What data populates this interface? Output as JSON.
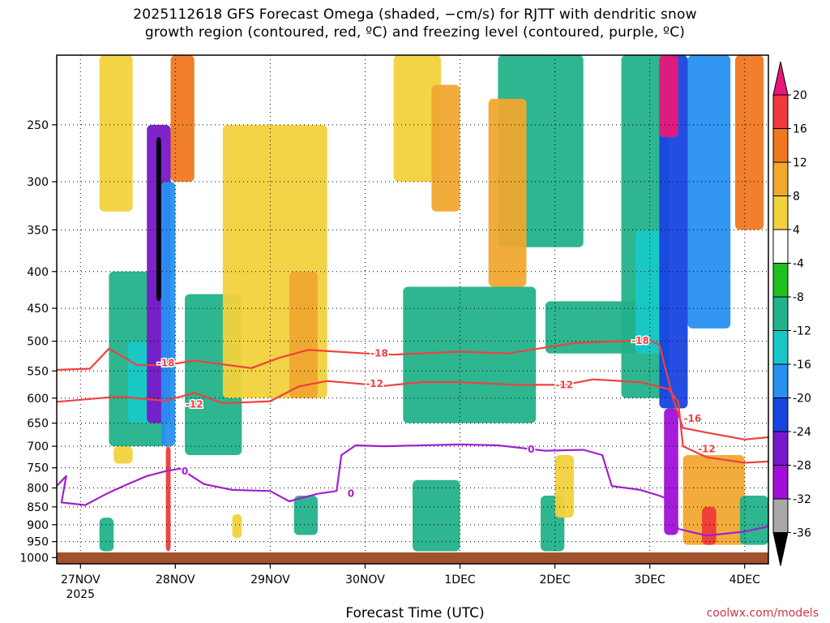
{
  "title_line1": "2025112618 GFS Forecast Omega (shaded, −cm/s) for RJTT with dendritic snow",
  "title_line2": "growth region (contoured, red, ºC) and freezing level (contoured, purple, ºC)",
  "watermark": "coolwx.com/models",
  "chart_data": {
    "type": "heatmap",
    "title": "2025112618 GFS Forecast Omega (shaded, −cm/s) for RJTT with dendritic snow growth region (contoured, red, ºC) and freezing level (contoured, purple, ºC)",
    "xlabel": "Forecast Time (UTC)",
    "ylabel": "",
    "x_ticks": [
      "27NOV",
      "28NOV",
      "29NOV",
      "30NOV",
      "1DEC",
      "2DEC",
      "3DEC",
      "4DEC"
    ],
    "x_sub_label": "2025",
    "x_range_days": [
      -0.25,
      7.25
    ],
    "y_ticks": [
      250,
      300,
      350,
      400,
      450,
      500,
      550,
      600,
      650,
      700,
      750,
      800,
      850,
      900,
      950,
      1000
    ],
    "y_scale": "log",
    "y_range_hpa": [
      200,
      1020
    ],
    "grid": true,
    "colorbar": {
      "labels": [
        "20",
        "16",
        "12",
        "8",
        "4",
        "-4",
        "-8",
        "-12",
        "-16",
        "-20",
        "-24",
        "-28",
        "-32",
        "-36"
      ],
      "colors": [
        "#e8197a",
        "#ee3a3a",
        "#f07820",
        "#f0a830",
        "#f2d23c",
        "#ffffff",
        "#20c020",
        "#22b28a",
        "#18c8c8",
        "#2890f0",
        "#1844e0",
        "#7818c8",
        "#a010d8",
        "#a8a8a8",
        "#000000"
      ]
    },
    "contours": [
      {
        "name": "-18",
        "color": "#f04040",
        "points": [
          [
            -0.25,
            548
          ],
          [
            0.1,
            546
          ],
          [
            0.3,
            512
          ],
          [
            0.6,
            540
          ],
          [
            0.9,
            540
          ],
          [
            1.2,
            532
          ],
          [
            1.8,
            545
          ],
          [
            2.1,
            527
          ],
          [
            2.4,
            514
          ],
          [
            3.0,
            520
          ],
          [
            3.3,
            522
          ],
          [
            4.0,
            517
          ],
          [
            4.5,
            520
          ],
          [
            5.2,
            503
          ],
          [
            5.7,
            500
          ],
          [
            6.0,
            498
          ],
          [
            6.1,
            506
          ],
          [
            6.25,
            603
          ],
          [
            6.35,
            660
          ],
          [
            6.6,
            670
          ],
          [
            7.0,
            685
          ],
          [
            7.25,
            680
          ]
        ]
      },
      {
        "name": "-12",
        "color": "#f04040",
        "points": [
          [
            -0.25,
            607
          ],
          [
            0.4,
            597
          ],
          [
            0.9,
            605
          ],
          [
            1.2,
            590
          ],
          [
            1.5,
            610
          ],
          [
            2.0,
            606
          ],
          [
            2.3,
            578
          ],
          [
            2.6,
            568
          ],
          [
            3.2,
            577
          ],
          [
            3.6,
            570
          ],
          [
            4.0,
            570
          ],
          [
            4.6,
            575
          ],
          [
            5.1,
            575
          ],
          [
            5.4,
            565
          ],
          [
            5.9,
            570
          ],
          [
            6.2,
            583
          ],
          [
            6.3,
            607
          ],
          [
            6.35,
            700
          ],
          [
            6.6,
            725
          ],
          [
            7.0,
            738
          ],
          [
            7.25,
            735
          ]
        ]
      },
      {
        "name": "0",
        "color": "#a020d0",
        "points": [
          [
            -0.25,
            795
          ],
          [
            -0.15,
            770
          ],
          [
            -0.2,
            838
          ],
          [
            0.05,
            845
          ],
          [
            0.3,
            812
          ],
          [
            0.5,
            790
          ],
          [
            0.7,
            770
          ],
          [
            0.9,
            758
          ],
          [
            1.05,
            752
          ],
          [
            1.3,
            790
          ],
          [
            1.6,
            805
          ],
          [
            2.0,
            808
          ],
          [
            2.2,
            835
          ],
          [
            2.5,
            815
          ],
          [
            2.7,
            808
          ],
          [
            2.75,
            720
          ],
          [
            2.9,
            698
          ],
          [
            3.2,
            700
          ],
          [
            4.0,
            696
          ],
          [
            4.4,
            698
          ],
          [
            4.9,
            710
          ],
          [
            5.3,
            708
          ],
          [
            5.5,
            720
          ],
          [
            5.6,
            795
          ],
          [
            5.9,
            805
          ],
          [
            6.1,
            820
          ],
          [
            6.2,
            830
          ],
          [
            6.3,
            912
          ],
          [
            6.6,
            932
          ],
          [
            7.0,
            920
          ],
          [
            7.25,
            905
          ]
        ]
      }
    ],
    "contour_labels": [
      {
        "text": "-18",
        "color": "#f04040",
        "x": 0.9,
        "y": 536
      },
      {
        "text": "-18",
        "color": "#f04040",
        "x": 3.15,
        "y": 520
      },
      {
        "text": "-18",
        "color": "#f04040",
        "x": 5.9,
        "y": 499
      },
      {
        "text": "-12",
        "color": "#f04040",
        "x": 1.2,
        "y": 612
      },
      {
        "text": "-12",
        "color": "#f04040",
        "x": 3.1,
        "y": 573
      },
      {
        "text": "-12",
        "color": "#f04040",
        "x": 5.1,
        "y": 575
      },
      {
        "text": "-16",
        "color": "#f04040",
        "x": 6.45,
        "y": 641
      },
      {
        "text": "-12",
        "color": "#f04040",
        "x": 6.6,
        "y": 706
      },
      {
        "text": "0",
        "color": "#a020d0",
        "x": 1.1,
        "y": 758
      },
      {
        "text": "0",
        "color": "#a020d0",
        "x": 2.85,
        "y": 815
      },
      {
        "text": "0",
        "color": "#a020d0",
        "x": 4.75,
        "y": 707
      }
    ],
    "omega_regions": [
      {
        "value": -8,
        "x": [
          0.3,
          0.9
        ],
        "p": [
          400,
          700
        ]
      },
      {
        "value": -12,
        "x": [
          0.5,
          0.8
        ],
        "p": [
          500,
          650
        ]
      },
      {
        "value": 6,
        "x": [
          0.2,
          0.55
        ],
        "p": [
          200,
          330
        ]
      },
      {
        "value": -24,
        "x": [
          0.7,
          0.95
        ],
        "p": [
          250,
          650
        ]
      },
      {
        "value": -16,
        "x": [
          0.85,
          1.0
        ],
        "p": [
          300,
          700
        ]
      },
      {
        "value": -36,
        "x": [
          0.8,
          0.85
        ],
        "p": [
          260,
          440
        ]
      },
      {
        "value": 12,
        "x": [
          0.95,
          1.2
        ],
        "p": [
          200,
          300
        ]
      },
      {
        "value": 18,
        "x": [
          0.9,
          0.95
        ],
        "p": [
          700,
          980
        ]
      },
      {
        "value": -8,
        "x": [
          1.1,
          1.7
        ],
        "p": [
          430,
          720
        ]
      },
      {
        "value": 5,
        "x": [
          1.5,
          2.6
        ],
        "p": [
          250,
          600
        ]
      },
      {
        "value": 9,
        "x": [
          2.2,
          2.5
        ],
        "p": [
          400,
          600
        ]
      },
      {
        "value": -8,
        "x": [
          2.25,
          2.5
        ],
        "p": [
          820,
          930
        ]
      },
      {
        "value": 5,
        "x": [
          3.3,
          3.8
        ],
        "p": [
          200,
          300
        ]
      },
      {
        "value": 8,
        "x": [
          3.7,
          4.0
        ],
        "p": [
          220,
          330
        ]
      },
      {
        "value": -8,
        "x": [
          3.4,
          4.8
        ],
        "p": [
          420,
          650
        ]
      },
      {
        "value": -8,
        "x": [
          4.4,
          5.3
        ],
        "p": [
          200,
          370
        ]
      },
      {
        "value": 10,
        "x": [
          4.3,
          4.7
        ],
        "p": [
          230,
          420
        ]
      },
      {
        "value": -8,
        "x": [
          4.9,
          5.9
        ],
        "p": [
          440,
          520
        ]
      },
      {
        "value": -8,
        "x": [
          5.7,
          6.2
        ],
        "p": [
          200,
          600
        ]
      },
      {
        "value": -12,
        "x": [
          5.85,
          6.15
        ],
        "p": [
          350,
          520
        ]
      },
      {
        "value": -20,
        "x": [
          6.1,
          6.4
        ],
        "p": [
          200,
          620
        ]
      },
      {
        "value": 20,
        "x": [
          6.1,
          6.3
        ],
        "p": [
          200,
          260
        ]
      },
      {
        "value": -28,
        "x": [
          6.15,
          6.3
        ],
        "p": [
          620,
          930
        ]
      },
      {
        "value": -16,
        "x": [
          6.4,
          6.85
        ],
        "p": [
          200,
          480
        ]
      },
      {
        "value": 12,
        "x": [
          6.9,
          7.2
        ],
        "p": [
          200,
          350
        ]
      },
      {
        "value": 10,
        "x": [
          6.35,
          7.0
        ],
        "p": [
          720,
          960
        ]
      },
      {
        "value": 17,
        "x": [
          6.55,
          6.7
        ],
        "p": [
          850,
          960
        ]
      },
      {
        "value": -8,
        "x": [
          6.95,
          7.25
        ],
        "p": [
          820,
          960
        ]
      },
      {
        "value": -8,
        "x": [
          0.2,
          0.35
        ],
        "p": [
          880,
          980
        ]
      },
      {
        "value": -8,
        "x": [
          3.5,
          4.0
        ],
        "p": [
          780,
          980
        ]
      },
      {
        "value": -8,
        "x": [
          4.85,
          5.1
        ],
        "p": [
          820,
          980
        ]
      },
      {
        "value": 5,
        "x": [
          5.0,
          5.2
        ],
        "p": [
          720,
          880
        ]
      },
      {
        "value": 5,
        "x": [
          0.35,
          0.55
        ],
        "p": [
          700,
          740
        ]
      },
      {
        "value": 5,
        "x": [
          1.6,
          1.7
        ],
        "p": [
          870,
          940
        ]
      }
    ]
  }
}
